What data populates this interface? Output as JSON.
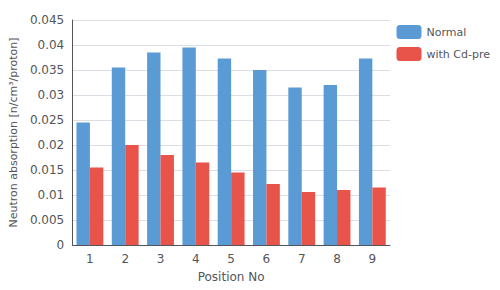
{
  "chart_data": {
    "type": "bar",
    "xlabel": "Position No",
    "ylabel": "Neutron absorption [n/cm³/proton]",
    "categories": [
      "1",
      "2",
      "3",
      "4",
      "5",
      "6",
      "7",
      "8",
      "9"
    ],
    "series": [
      {
        "name": "Normal",
        "color": "#5B9BD5",
        "values": [
          0.0245,
          0.0355,
          0.0385,
          0.0395,
          0.0373,
          0.035,
          0.0315,
          0.032,
          0.0373
        ]
      },
      {
        "name": "with Cd-pre",
        "color": "#E8534A",
        "values": [
          0.0155,
          0.02,
          0.018,
          0.0165,
          0.0145,
          0.0122,
          0.0106,
          0.011,
          0.0115
        ]
      }
    ],
    "ylim": [
      0,
      0.045
    ],
    "yticks": [
      0,
      0.005,
      0.01,
      0.015,
      0.02,
      0.025,
      0.03,
      0.035,
      0.04,
      0.045
    ],
    "grid": true,
    "legend": "right"
  }
}
